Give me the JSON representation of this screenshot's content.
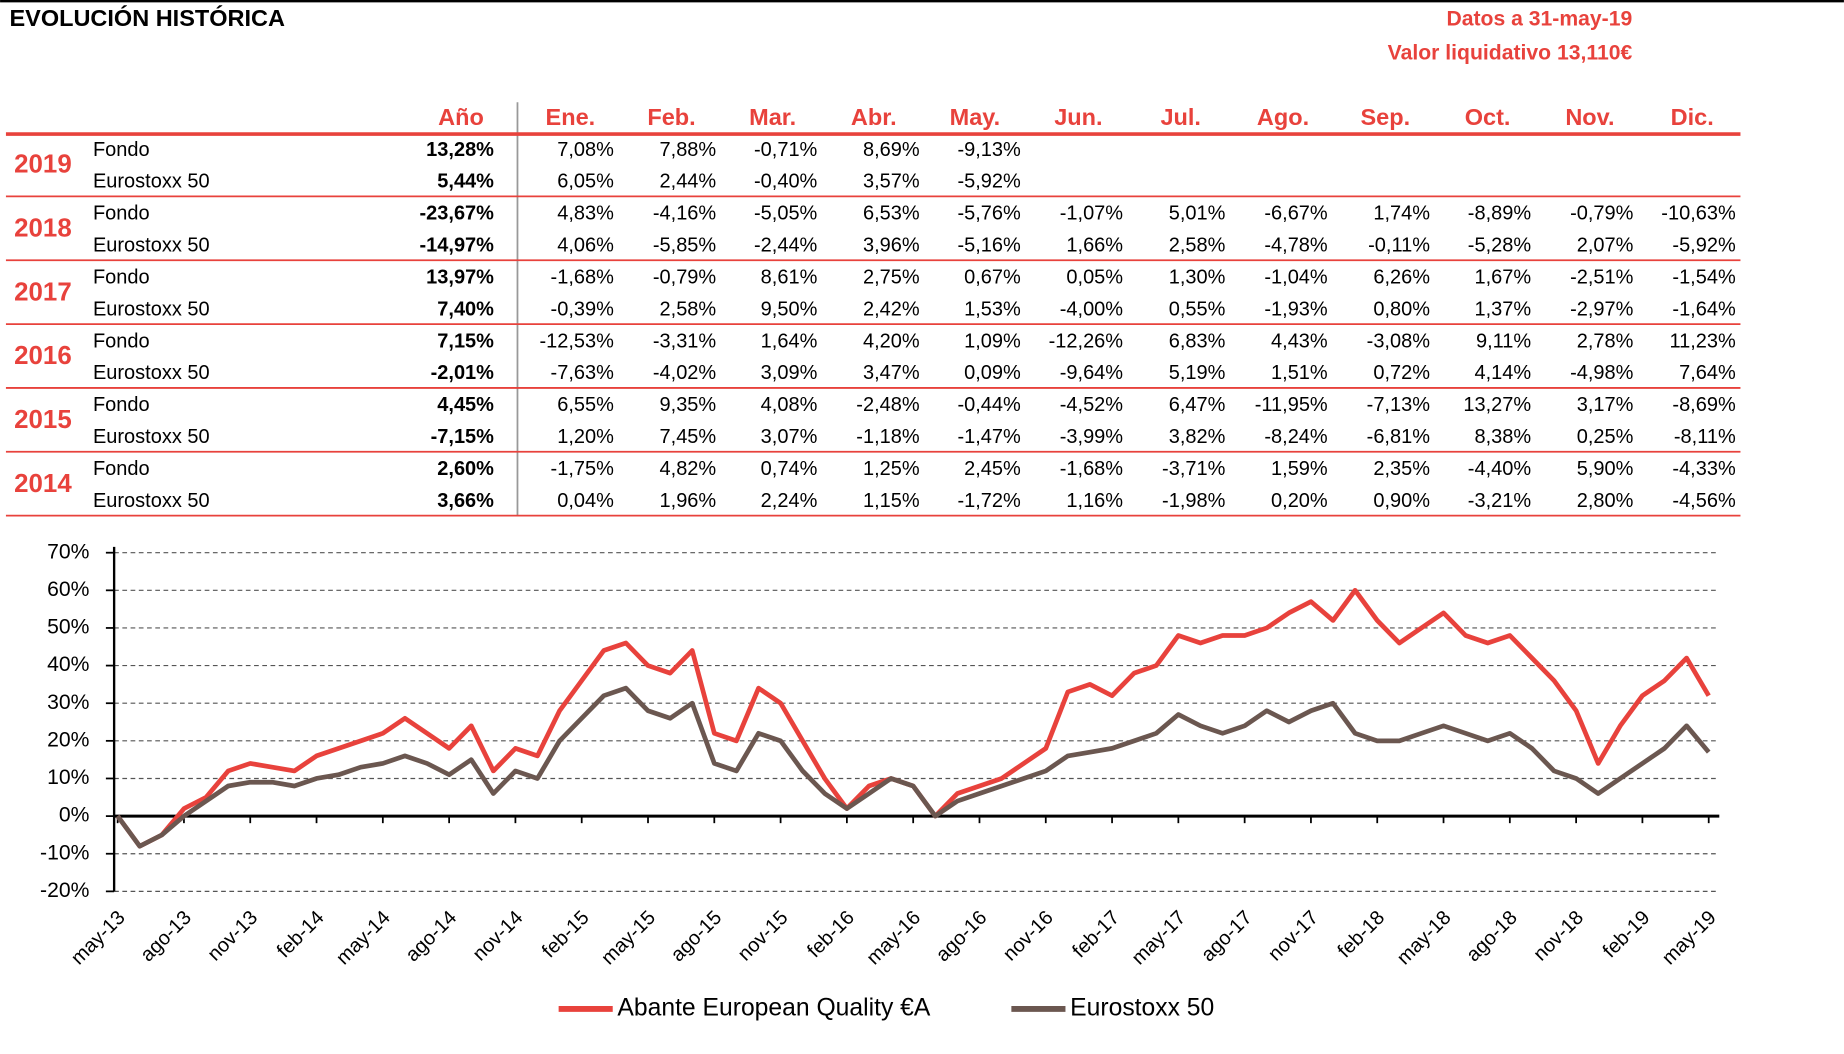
{
  "header": {
    "title": "EVOLUCIÓN HISTÓRICA",
    "date": "Datos a 31-may-19",
    "nav": "Valor liquidativo 13,110€"
  },
  "table": {
    "columns": [
      "Año",
      "Ene.",
      "Feb.",
      "Mar.",
      "Abr.",
      "May.",
      "Jun.",
      "Jul.",
      "Ago.",
      "Sep.",
      "Oct.",
      "Nov.",
      "Dic."
    ],
    "years": [
      {
        "year": "2019",
        "rows": [
          {
            "label": "Fondo",
            "values": [
              "13,28%",
              "7,08%",
              "7,88%",
              "-0,71%",
              "8,69%",
              "-9,13%"
            ]
          },
          {
            "label": "Eurostoxx 50",
            "values": [
              "5,44%",
              "6,05%",
              "2,44%",
              "-0,40%",
              "3,57%",
              "-5,92%"
            ]
          }
        ]
      },
      {
        "year": "2018",
        "rows": [
          {
            "label": "Fondo",
            "values": [
              "-23,67%",
              "4,83%",
              "-4,16%",
              "-5,05%",
              "6,53%",
              "-5,76%",
              "-1,07%",
              "5,01%",
              "-6,67%",
              "1,74%",
              "-8,89%",
              "-0,79%",
              "-10,63%"
            ]
          },
          {
            "label": "Eurostoxx 50",
            "values": [
              "-14,97%",
              "4,06%",
              "-5,85%",
              "-2,44%",
              "3,96%",
              "-5,16%",
              "1,66%",
              "2,58%",
              "-4,78%",
              "-0,11%",
              "-5,28%",
              "2,07%",
              "-5,92%"
            ]
          }
        ]
      },
      {
        "year": "2017",
        "rows": [
          {
            "label": "Fondo",
            "values": [
              "13,97%",
              "-1,68%",
              "-0,79%",
              "8,61%",
              "2,75%",
              "0,67%",
              "0,05%",
              "1,30%",
              "-1,04%",
              "6,26%",
              "1,67%",
              "-2,51%",
              "-1,54%"
            ]
          },
          {
            "label": "Eurostoxx 50",
            "values": [
              "7,40%",
              "-0,39%",
              "2,58%",
              "9,50%",
              "2,42%",
              "1,53%",
              "-4,00%",
              "0,55%",
              "-1,93%",
              "0,80%",
              "1,37%",
              "-2,97%",
              "-1,64%"
            ]
          }
        ]
      },
      {
        "year": "2016",
        "rows": [
          {
            "label": "Fondo",
            "values": [
              "7,15%",
              "-12,53%",
              "-3,31%",
              "1,64%",
              "4,20%",
              "1,09%",
              "-12,26%",
              "6,83%",
              "4,43%",
              "-3,08%",
              "9,11%",
              "2,78%",
              "11,23%"
            ]
          },
          {
            "label": "Eurostoxx 50",
            "values": [
              "-2,01%",
              "-7,63%",
              "-4,02%",
              "3,09%",
              "3,47%",
              "0,09%",
              "-9,64%",
              "5,19%",
              "1,51%",
              "0,72%",
              "4,14%",
              "-4,98%",
              "7,64%"
            ]
          }
        ]
      },
      {
        "year": "2015",
        "rows": [
          {
            "label": "Fondo",
            "values": [
              "4,45%",
              "6,55%",
              "9,35%",
              "4,08%",
              "-2,48%",
              "-0,44%",
              "-4,52%",
              "6,47%",
              "-11,95%",
              "-7,13%",
              "13,27%",
              "3,17%",
              "-8,69%"
            ]
          },
          {
            "label": "Eurostoxx 50",
            "values": [
              "-7,15%",
              "1,20%",
              "7,45%",
              "3,07%",
              "-1,18%",
              "-1,47%",
              "-3,99%",
              "3,82%",
              "-8,24%",
              "-6,81%",
              "8,38%",
              "0,25%",
              "-8,11%"
            ]
          }
        ]
      },
      {
        "year": "2014",
        "rows": [
          {
            "label": "Fondo",
            "values": [
              "2,60%",
              "-1,75%",
              "4,82%",
              "0,74%",
              "1,25%",
              "2,45%",
              "-1,68%",
              "-3,71%",
              "1,59%",
              "2,35%",
              "-4,40%",
              "5,90%",
              "-4,33%"
            ]
          },
          {
            "label": "Eurostoxx 50",
            "values": [
              "3,66%",
              "0,04%",
              "1,96%",
              "2,24%",
              "1,15%",
              "-1,72%",
              "1,16%",
              "-1,98%",
              "0,20%",
              "0,90%",
              "-3,21%",
              "2,80%",
              "-4,56%"
            ]
          }
        ]
      }
    ]
  },
  "chart_data": {
    "type": "line",
    "categories": [
      "may-13",
      null,
      null,
      "ago-13",
      null,
      null,
      "nov-13",
      null,
      null,
      "feb-14",
      null,
      null,
      "may-14",
      null,
      null,
      "ago-14",
      null,
      null,
      "nov-14",
      null,
      null,
      "feb-15",
      null,
      null,
      "may-15",
      null,
      null,
      "ago-15",
      null,
      null,
      "nov-15",
      null,
      null,
      "feb-16",
      null,
      null,
      "may-16",
      null,
      null,
      "ago-16",
      null,
      null,
      "nov-16",
      null,
      null,
      "feb-17",
      null,
      null,
      "may-17",
      null,
      null,
      "ago-17",
      null,
      null,
      "nov-17",
      null,
      null,
      "feb-18",
      null,
      null,
      "may-18",
      null,
      null,
      "ago-18",
      null,
      null,
      "nov-18",
      null,
      null,
      "feb-19",
      null,
      null,
      "may-19"
    ],
    "series": [
      {
        "name": "Abante European Quality €A",
        "color": "#e8423c",
        "values": [
          0,
          -8,
          -5,
          2,
          5,
          12,
          14,
          13,
          12,
          16,
          18,
          20,
          22,
          26,
          22,
          18,
          24,
          12,
          18,
          16,
          28,
          36,
          44,
          46,
          40,
          38,
          44,
          22,
          20,
          34,
          30,
          20,
          10,
          2,
          8,
          10,
          8,
          0,
          6,
          8,
          10,
          14,
          18,
          33,
          35,
          32,
          38,
          40,
          48,
          46,
          48,
          48,
          50,
          54,
          57,
          52,
          60,
          52,
          46,
          50,
          54,
          48,
          46,
          48,
          42,
          36,
          28,
          14,
          24,
          32,
          36,
          42,
          32
        ]
      },
      {
        "name": "Eurostoxx 50",
        "color": "#6b5750",
        "values": [
          0,
          -8,
          -5,
          0,
          4,
          8,
          9,
          9,
          8,
          10,
          11,
          13,
          14,
          16,
          14,
          11,
          15,
          6,
          12,
          10,
          20,
          26,
          32,
          34,
          28,
          26,
          30,
          14,
          12,
          22,
          20,
          12,
          6,
          2,
          6,
          10,
          8,
          0,
          4,
          6,
          8,
          10,
          12,
          16,
          17,
          18,
          20,
          22,
          27,
          24,
          22,
          24,
          28,
          25,
          28,
          30,
          22,
          20,
          20,
          22,
          24,
          22,
          20,
          22,
          18,
          12,
          10,
          6,
          10,
          14,
          18,
          24,
          17
        ]
      }
    ],
    "ylim": [
      -20,
      70
    ],
    "yticks": [
      {
        "value": -20,
        "label": "-20%"
      },
      {
        "value": -10,
        "label": "-10%"
      },
      {
        "value": 0,
        "label": "0%"
      },
      {
        "value": 10,
        "label": "10%"
      },
      {
        "value": 20,
        "label": "20%"
      },
      {
        "value": 30,
        "label": "30%"
      },
      {
        "value": 40,
        "label": "40%"
      },
      {
        "value": 50,
        "label": "50%"
      },
      {
        "value": 60,
        "label": "60%"
      },
      {
        "value": 70,
        "label": "70%"
      }
    ],
    "grid": true
  }
}
